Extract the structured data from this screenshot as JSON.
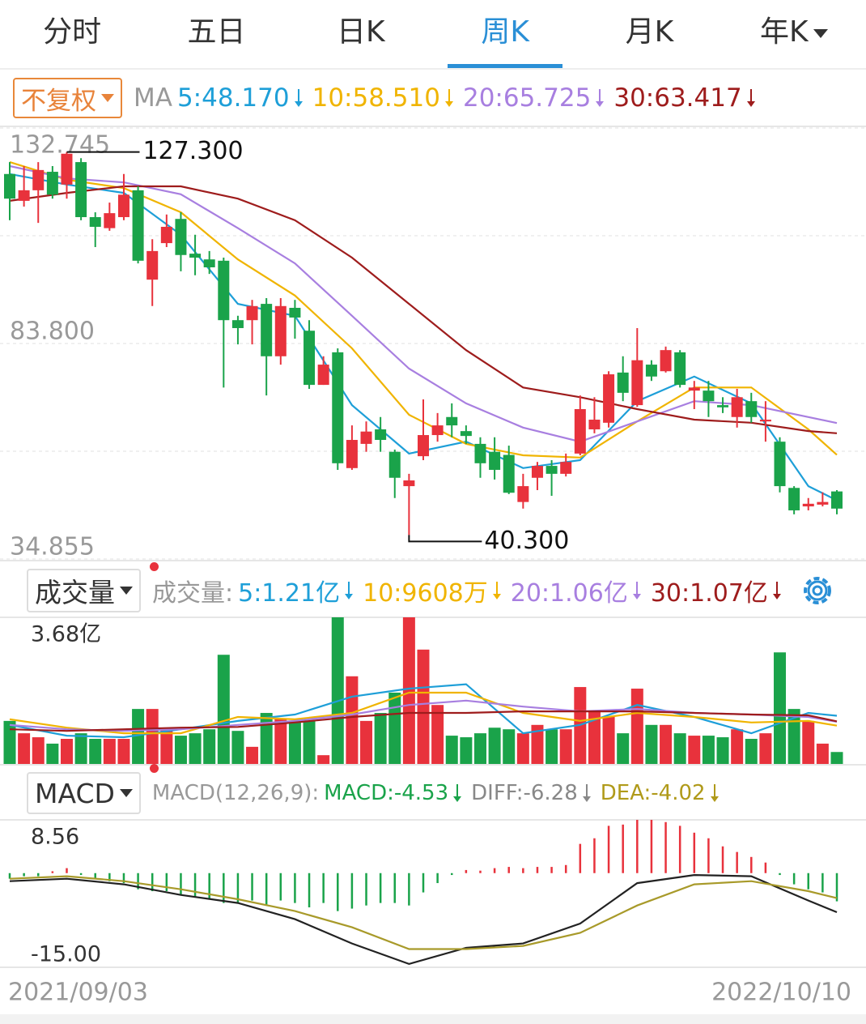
{
  "tabs": [
    "分时",
    "五日",
    "日K",
    "周K",
    "月K",
    "年K"
  ],
  "active_tab": 3,
  "toolbar": {
    "adjust": "不复权"
  },
  "date_range": [
    "2021/09/03",
    "2022/10/10"
  ],
  "chart_data": [
    {
      "type": "candlestick",
      "legend": {
        "label": "MA",
        "items": [
          {
            "text": "5:48.170",
            "color": "#1e9fd8"
          },
          {
            "text": "10:58.510",
            "color": "#f0b400"
          },
          {
            "text": "20:65.725",
            "color": "#a87fe0"
          },
          {
            "text": "30:63.417",
            "color": "#9e1c1c"
          }
        ]
      },
      "up_color": "#e8323c",
      "down_color": "#1aa34a",
      "open": [
        122.3,
        116.2,
        118.6,
        122.8,
        119.9,
        125.0,
        112.5,
        110.0,
        112.5,
        118.6,
        98.3,
        106.6,
        112.1,
        104.2,
        102.9,
        102.6,
        89.1,
        89.1,
        92.8,
        80.9,
        91.9,
        86.7,
        74.4,
        81.8,
        55.5,
        61.0,
        64.3,
        59.2,
        51.4,
        58.2,
        63.0,
        67.1,
        63.9,
        61.0,
        59.2,
        58.5,
        47.8,
        53.3,
        56.0,
        54.2,
        58.8,
        64.3,
        65.8,
        77.2,
        69.8,
        79.0,
        77.5,
        81.8,
        73.1,
        73.1,
        69.8,
        67.1,
        70.7,
        66.1,
        61.5,
        51.0,
        46.8,
        47.2,
        50.2
      ],
      "high": [
        125.0,
        124.1,
        125.0,
        124.1,
        127.3,
        125.9,
        113.6,
        115.8,
        122.3,
        119.5,
        107.5,
        113.1,
        113.6,
        108.5,
        104.8,
        103.3,
        90.1,
        93.7,
        94.1,
        94.1,
        93.7,
        89.1,
        80.9,
        82.7,
        65.2,
        66.1,
        67.1,
        59.7,
        54.2,
        71.1,
        68.0,
        70.2,
        65.2,
        62.5,
        62.5,
        60.6,
        54.2,
        56.9,
        57.3,
        58.8,
        72.0,
        71.6,
        77.5,
        80.9,
        87.3,
        80.0,
        83.1,
        82.3,
        75.3,
        75.3,
        71.6,
        73.5,
        72.6,
        70.7,
        62.5,
        51.4,
        48.7,
        50.0,
        50.5
      ],
      "low": [
        111.8,
        114.9,
        111.2,
        116.7,
        116.7,
        111.8,
        105.7,
        109.4,
        111.8,
        102.0,
        92.3,
        105.7,
        100.2,
        99.3,
        99.6,
        73.8,
        83.6,
        83.6,
        72.0,
        79.0,
        84.9,
        73.5,
        74.4,
        55.1,
        55.1,
        59.2,
        59.2,
        48.7,
        40.3,
        57.3,
        61.5,
        62.5,
        61.0,
        53.3,
        52.9,
        49.6,
        46.3,
        50.5,
        49.2,
        53.6,
        58.4,
        63.4,
        64.7,
        70.7,
        69.4,
        75.3,
        77.2,
        73.8,
        68.9,
        67.1,
        68.0,
        64.7,
        65.8,
        61.5,
        50.0,
        45.0,
        45.9,
        46.8,
        45.0
      ],
      "close": [
        116.7,
        118.6,
        123.2,
        117.6,
        126.9,
        112.5,
        110.3,
        113.4,
        117.6,
        102.6,
        104.8,
        110.3,
        103.9,
        103.3,
        101.1,
        89.1,
        87.3,
        92.3,
        80.9,
        92.3,
        89.7,
        74.4,
        79.0,
        56.6,
        61.9,
        63.8,
        61.9,
        53.3,
        52.7,
        63.0,
        65.2,
        65.2,
        62.8,
        56.6,
        55.1,
        49.9,
        51.4,
        56.0,
        54.2,
        56.9,
        68.9,
        66.5,
        76.8,
        72.6,
        80.0,
        76.3,
        82.3,
        74.4,
        73.8,
        70.7,
        69.3,
        71.6,
        67.1,
        66.5,
        51.4,
        45.9,
        47.4,
        47.8,
        46.3
      ],
      "series": [
        {
          "color": "#1e9fd8",
          "x": [
            0,
            4,
            8,
            12,
            16,
            20,
            24,
            28,
            32,
            36,
            40,
            44,
            48,
            52,
            56,
            58
          ],
          "values": [
            122.3,
            119.9,
            118.0,
            108.5,
            92.8,
            90.1,
            69.8,
            58.8,
            61.5,
            55.5,
            57.3,
            70.7,
            76.3,
            70.2,
            51.4,
            48.17
          ]
        },
        {
          "color": "#f0b400",
          "x": [
            0,
            4,
            8,
            12,
            16,
            20,
            24,
            28,
            32,
            36,
            40,
            44,
            48,
            52,
            56,
            58
          ],
          "values": [
            125.0,
            121.0,
            119.1,
            113.6,
            102.9,
            94.7,
            82.7,
            67.6,
            61.0,
            58.4,
            57.9,
            66.1,
            73.8,
            73.8,
            64.3,
            58.51
          ]
        },
        {
          "color": "#a87fe0",
          "x": [
            0,
            4,
            8,
            12,
            16,
            20,
            24,
            28,
            32,
            36,
            40,
            44,
            48,
            52,
            56,
            58
          ],
          "values": [
            124.1,
            121.3,
            120.4,
            117.7,
            110.0,
            102.0,
            90.1,
            78.1,
            70.2,
            64.7,
            61.5,
            66.1,
            70.7,
            69.8,
            67.1,
            65.725
          ]
        },
        {
          "color": "#9e1c1c",
          "x": [
            0,
            4,
            8,
            12,
            16,
            20,
            24,
            28,
            32,
            36,
            40,
            44,
            48,
            52,
            56,
            58
          ],
          "values": [
            116.2,
            118.0,
            119.5,
            119.5,
            116.7,
            111.8,
            103.3,
            92.8,
            82.3,
            73.8,
            71.6,
            68.9,
            66.5,
            65.8,
            63.9,
            63.417
          ]
        }
      ],
      "ylim": [
        34.855,
        132.745
      ],
      "yticks": [
        132.745,
        {
          "value": 83.8,
          "label": "83.800"
        },
        34.855
      ],
      "grid": true,
      "annotations": [
        {
          "value": 127.3,
          "label": "127.300"
        },
        {
          "value": 40.3,
          "label": "40.300"
        }
      ]
    },
    {
      "type": "bar",
      "selector": "成交量",
      "legend": {
        "label": "成交量:",
        "items": [
          {
            "text": "5:1.21亿",
            "color": "#1e9fd8"
          },
          {
            "text": "10:9608万",
            "color": "#f0b400"
          },
          {
            "text": "20:1.06亿",
            "color": "#a87fe0"
          },
          {
            "text": "30:1.07亿",
            "color": "#9e1c1c"
          }
        ]
      },
      "values": [
        1.08,
        0.77,
        0.67,
        0.51,
        0.63,
        0.77,
        0.63,
        0.63,
        0.63,
        1.38,
        1.38,
        0.87,
        0.71,
        0.77,
        0.87,
        2.74,
        0.83,
        0.43,
        1.28,
        1.12,
        1.08,
        1.08,
        0.22,
        3.68,
        2.2,
        1.08,
        1.28,
        1.79,
        3.68,
        2.87,
        1.48,
        0.71,
        0.67,
        0.77,
        0.91,
        0.87,
        0.77,
        0.98,
        0.87,
        0.87,
        1.93,
        1.32,
        1.18,
        0.77,
        1.89,
        0.98,
        0.98,
        0.77,
        0.71,
        0.71,
        0.67,
        0.87,
        0.63,
        0.77,
        2.8,
        1.38,
        1.08,
        0.51,
        0.3
      ],
      "series": [
        {
          "color": "#1e9fd8",
          "x": [
            0,
            4,
            8,
            12,
            16,
            20,
            24,
            28,
            32,
            36,
            40,
            44,
            48,
            52,
            56,
            58
          ],
          "values": [
            0.98,
            0.71,
            0.67,
            0.87,
            1.08,
            1.24,
            1.69,
            1.89,
            2.0,
            0.77,
            0.98,
            1.48,
            1.18,
            0.77,
            1.28,
            1.21
          ]
        },
        {
          "color": "#f0b400",
          "x": [
            0,
            4,
            8,
            12,
            16,
            20,
            24,
            28,
            32,
            36,
            40,
            44,
            48,
            52,
            56,
            58
          ],
          "values": [
            1.12,
            0.91,
            0.77,
            0.77,
            1.18,
            1.12,
            1.28,
            1.79,
            1.79,
            1.28,
            1.08,
            1.28,
            1.18,
            1.04,
            1.08,
            0.9608
          ]
        },
        {
          "color": "#a87fe0",
          "x": [
            0,
            4,
            8,
            12,
            16,
            20,
            24,
            28,
            32,
            36,
            40,
            44,
            48,
            52,
            56,
            58
          ],
          "values": [
            0.98,
            0.87,
            0.83,
            0.87,
            0.98,
            1.08,
            1.24,
            1.48,
            1.59,
            1.44,
            1.32,
            1.38,
            1.28,
            1.24,
            1.18,
            1.06
          ]
        },
        {
          "color": "#9e1c1c",
          "x": [
            0,
            4,
            8,
            12,
            16,
            20,
            24,
            28,
            32,
            36,
            40,
            44,
            48,
            52,
            56,
            58
          ],
          "values": [
            0.87,
            0.83,
            0.87,
            0.91,
            0.93,
            1.04,
            1.18,
            1.28,
            1.28,
            1.32,
            1.32,
            1.32,
            1.28,
            1.24,
            1.22,
            1.07
          ]
        }
      ],
      "ylim": [
        0,
        3.68
      ],
      "yticks": [
        {
          "value": 3.68,
          "label": "3.68亿"
        }
      ]
    },
    {
      "type": "macd",
      "selector": "MACD",
      "legend": {
        "label": "MACD(12,26,9):",
        "items": [
          {
            "text": "MACD:-4.53",
            "color": "#1aa34a"
          },
          {
            "text": "DIFF:-6.28",
            "color": "#888888"
          },
          {
            "text": "DEA:-4.02",
            "color": "#b09a1a"
          }
        ]
      },
      "up_color": "#e8323c",
      "down_color": "#1aa34a",
      "values": [
        -0.9,
        -0.5,
        -0.5,
        0.3,
        0.8,
        -0.3,
        -0.9,
        -1.3,
        -1.6,
        -2.6,
        -2.9,
        -2.9,
        -3.5,
        -3.9,
        -4.2,
        -4.8,
        -4.8,
        -4.4,
        -5.2,
        -4.4,
        -4.8,
        -5.5,
        -4.8,
        -6.1,
        -5.7,
        -5.2,
        -4.8,
        -4.8,
        -5.2,
        -3.1,
        -1.6,
        -0.3,
        0.5,
        0.4,
        0.8,
        1.0,
        0.8,
        1.0,
        1.0,
        1.3,
        4.7,
        5.6,
        7.6,
        7.8,
        8.56,
        8.56,
        8.2,
        7.6,
        6.5,
        5.6,
        4.3,
        3.4,
        2.6,
        1.7,
        -0.3,
        -1.8,
        -2.6,
        -3.1,
        -4.53
      ],
      "series": [
        {
          "color": "#222222",
          "x": [
            0,
            4,
            8,
            12,
            16,
            20,
            24,
            28,
            32,
            36,
            40,
            44,
            48,
            52,
            56,
            58
          ],
          "values": [
            -1.3,
            -0.9,
            -1.8,
            -3.5,
            -4.8,
            -7.4,
            -11.3,
            -14.6,
            -12.0,
            -11.3,
            -8.1,
            -1.6,
            -0.3,
            -0.5,
            -4.4,
            -6.28
          ]
        },
        {
          "color": "#a89a2a",
          "x": [
            0,
            4,
            8,
            12,
            16,
            20,
            24,
            28,
            32,
            36,
            40,
            44,
            48,
            52,
            56,
            58
          ],
          "values": [
            -0.9,
            -0.5,
            -1.3,
            -2.6,
            -4.2,
            -6.1,
            -8.7,
            -12.2,
            -12.2,
            -11.7,
            -9.6,
            -5.2,
            -1.8,
            -1.3,
            -2.9,
            -4.02
          ]
        }
      ],
      "ylim": [
        -15,
        8.56
      ],
      "yticks": [
        8.56,
        {
          "value": -15,
          "label": "-15.00"
        }
      ]
    }
  ]
}
